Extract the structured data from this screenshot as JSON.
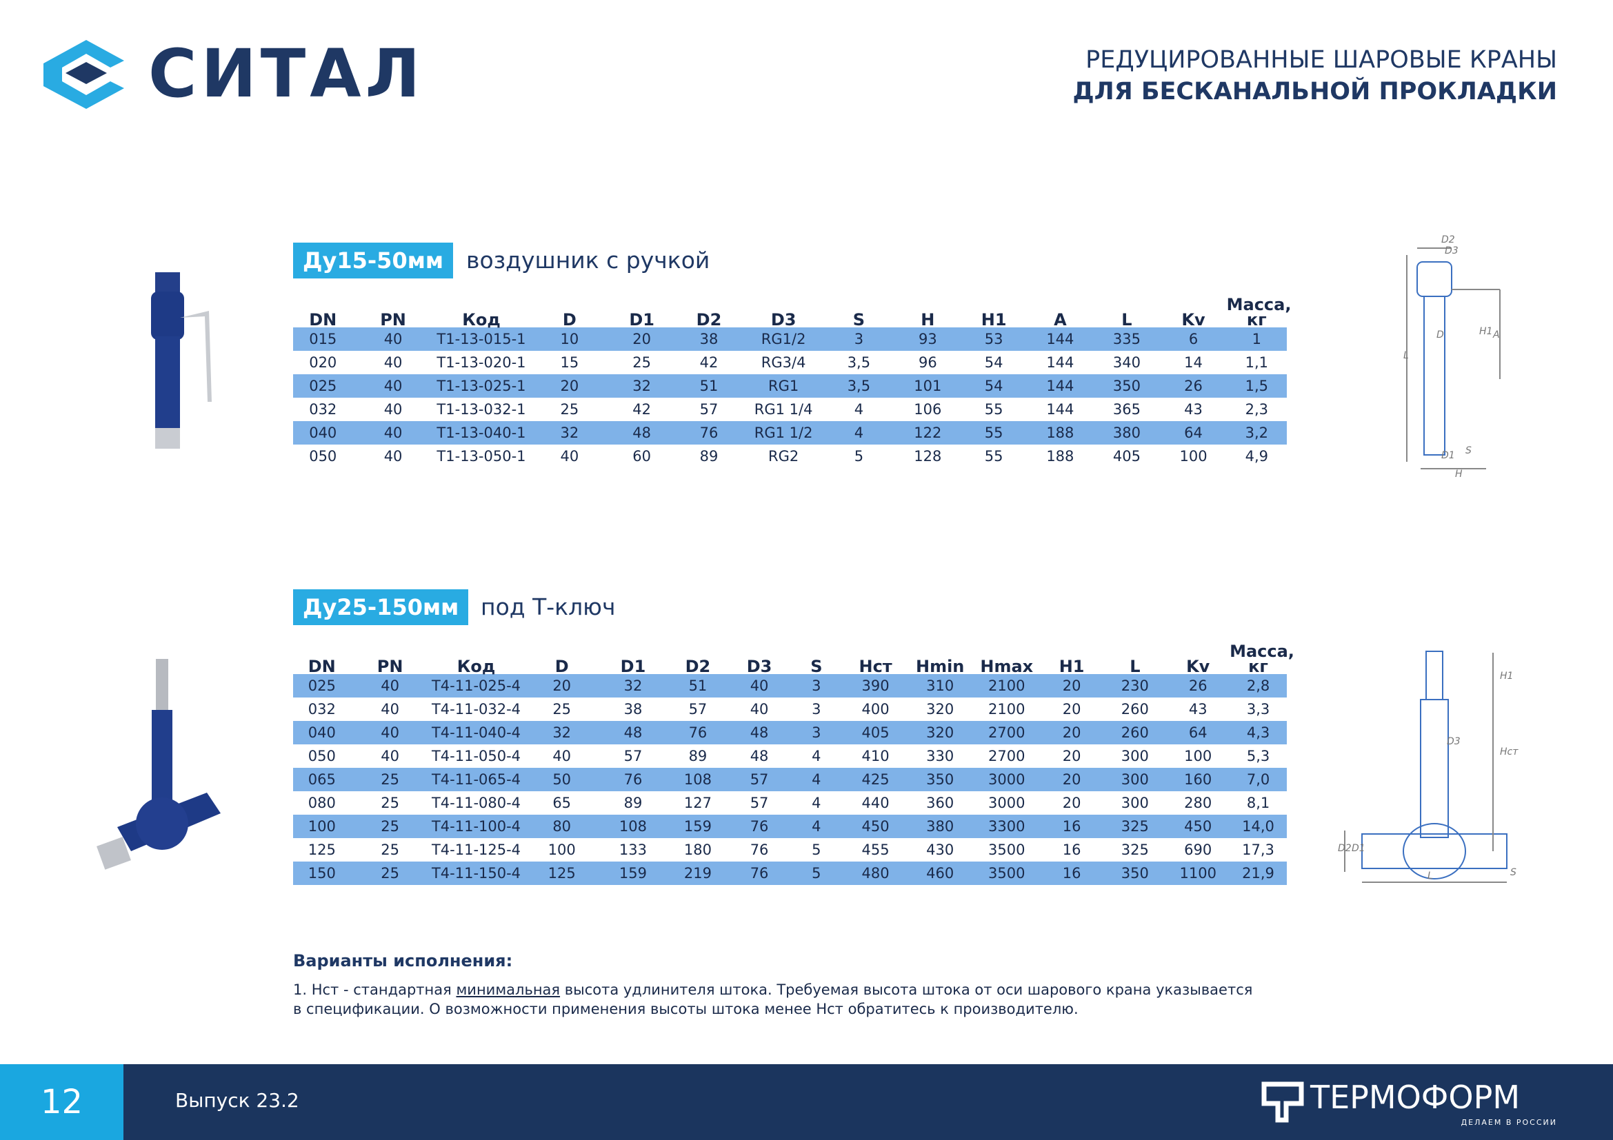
{
  "header": {
    "logo": "СИТАЛ",
    "title_line1": "РЕДУЦИРОВАННЫЕ ШАРОВЫЕ КРАНЫ",
    "title_line2": "ДЛЯ БЕСКАНАЛЬНОЙ ПРОКЛАДКИ"
  },
  "sections": [
    {
      "badge": "Ду15-50мм",
      "subtitle": "воздушник с ручкой",
      "table": {
        "columns": [
          "DN",
          "PN",
          "Код",
          "D",
          "D1",
          "D2",
          "D3",
          "S",
          "H",
          "H1",
          "A",
          "L",
          "Kv",
          "Масса, кг"
        ],
        "rows": [
          [
            "015",
            "40",
            "Т1-13-015-1",
            "10",
            "20",
            "38",
            "RG1/2",
            "3",
            "93",
            "53",
            "144",
            "335",
            "6",
            "1"
          ],
          [
            "020",
            "40",
            "Т1-13-020-1",
            "15",
            "25",
            "42",
            "RG3/4",
            "3,5",
            "96",
            "54",
            "144",
            "340",
            "14",
            "1,1"
          ],
          [
            "025",
            "40",
            "Т1-13-025-1",
            "20",
            "32",
            "51",
            "RG1",
            "3,5",
            "101",
            "54",
            "144",
            "350",
            "26",
            "1,5"
          ],
          [
            "032",
            "40",
            "Т1-13-032-1",
            "25",
            "42",
            "57",
            "RG1 1/4",
            "4",
            "106",
            "55",
            "144",
            "365",
            "43",
            "2,3"
          ],
          [
            "040",
            "40",
            "Т1-13-040-1",
            "32",
            "48",
            "76",
            "RG1 1/2",
            "4",
            "122",
            "55",
            "188",
            "380",
            "64",
            "3,2"
          ],
          [
            "050",
            "40",
            "Т1-13-050-1",
            "40",
            "60",
            "89",
            "RG2",
            "5",
            "128",
            "55",
            "188",
            "405",
            "100",
            "4,9"
          ]
        ]
      },
      "drawing_labels": [
        "D2",
        "D3",
        "L",
        "D",
        "H1",
        "A",
        "D1",
        "S",
        "H"
      ]
    },
    {
      "badge": "Ду25-150мм",
      "subtitle": "под Т-ключ",
      "table": {
        "columns": [
          "DN",
          "PN",
          "Код",
          "D",
          "D1",
          "D2",
          "D3",
          "S",
          "Нст",
          "Hmin",
          "Hmax",
          "H1",
          "L",
          "Kv",
          "Масса, кг"
        ],
        "rows": [
          [
            "025",
            "40",
            "Т4-11-025-4",
            "20",
            "32",
            "51",
            "40",
            "3",
            "390",
            "310",
            "2100",
            "20",
            "230",
            "26",
            "2,8"
          ],
          [
            "032",
            "40",
            "Т4-11-032-4",
            "25",
            "38",
            "57",
            "40",
            "3",
            "400",
            "320",
            "2100",
            "20",
            "260",
            "43",
            "3,3"
          ],
          [
            "040",
            "40",
            "Т4-11-040-4",
            "32",
            "48",
            "76",
            "48",
            "3",
            "405",
            "320",
            "2700",
            "20",
            "260",
            "64",
            "4,3"
          ],
          [
            "050",
            "40",
            "Т4-11-050-4",
            "40",
            "57",
            "89",
            "48",
            "4",
            "410",
            "330",
            "2700",
            "20",
            "300",
            "100",
            "5,3"
          ],
          [
            "065",
            "25",
            "Т4-11-065-4",
            "50",
            "76",
            "108",
            "57",
            "4",
            "425",
            "350",
            "3000",
            "20",
            "300",
            "160",
            "7,0"
          ],
          [
            "080",
            "25",
            "Т4-11-080-4",
            "65",
            "89",
            "127",
            "57",
            "4",
            "440",
            "360",
            "3000",
            "20",
            "300",
            "280",
            "8,1"
          ],
          [
            "100",
            "25",
            "Т4-11-100-4",
            "80",
            "108",
            "159",
            "76",
            "4",
            "450",
            "380",
            "3300",
            "16",
            "325",
            "450",
            "14,0"
          ],
          [
            "125",
            "25",
            "Т4-11-125-4",
            "100",
            "133",
            "180",
            "76",
            "5",
            "455",
            "430",
            "3500",
            "16",
            "325",
            "690",
            "17,3"
          ],
          [
            "150",
            "25",
            "Т4-11-150-4",
            "125",
            "159",
            "219",
            "76",
            "5",
            "480",
            "460",
            "3500",
            "16",
            "350",
            "1100",
            "21,9"
          ]
        ]
      },
      "drawing_labels": [
        "H1",
        "D3",
        "Нст",
        "D2",
        "D1",
        "L",
        "S"
      ]
    }
  ],
  "notes": {
    "heading": "Варианты исполнения:",
    "text_parts": [
      "1. Нст - стандартная ",
      "минимальная",
      " высота удлинителя штока. Требуемая высота штока от оси шарового крана указывается в спецификации. О возможности применения высоты штока менее Нст обратитесь к производителю."
    ]
  },
  "footer": {
    "page": "12",
    "issue": "Выпуск 23.2",
    "brand": "ТЕРМОФОРМ",
    "slogan": "ДЕЛАЕМ В РОССИИ"
  }
}
